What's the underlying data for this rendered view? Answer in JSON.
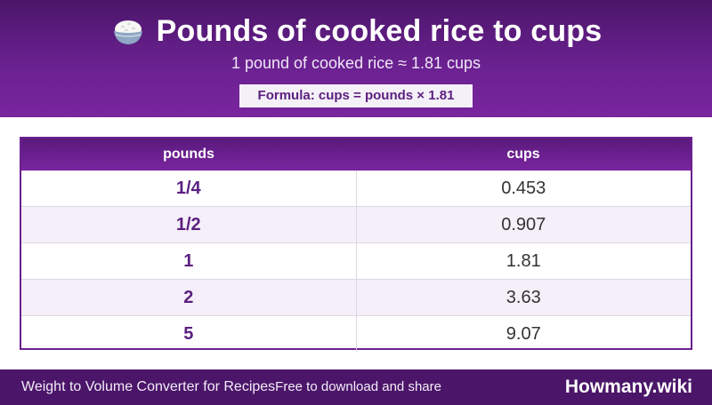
{
  "header": {
    "icon": "rice-bowl-icon",
    "title": "Pounds of cooked rice to cups",
    "subtitle": "1 pound of cooked rice ≈ 1.81 cups",
    "formula": "Formula: cups = pounds × 1.81"
  },
  "table": {
    "columns": [
      "pounds",
      "cups"
    ],
    "rows": [
      {
        "pounds": "1/4",
        "cups": "0.453"
      },
      {
        "pounds": "1/2",
        "cups": "0.907"
      },
      {
        "pounds": "1",
        "cups": "1.81"
      },
      {
        "pounds": "2",
        "cups": "3.63"
      },
      {
        "pounds": "5",
        "cups": "9.07"
      }
    ]
  },
  "footer": {
    "converter_name": "Weight to Volume Converter for Recipes",
    "share_text": "Free to download and share",
    "brand": "Howmany.wiki"
  },
  "colors": {
    "header_purple": "#6a2190",
    "dark_purple": "#4b1669",
    "accent_text": "#5b1f80"
  }
}
